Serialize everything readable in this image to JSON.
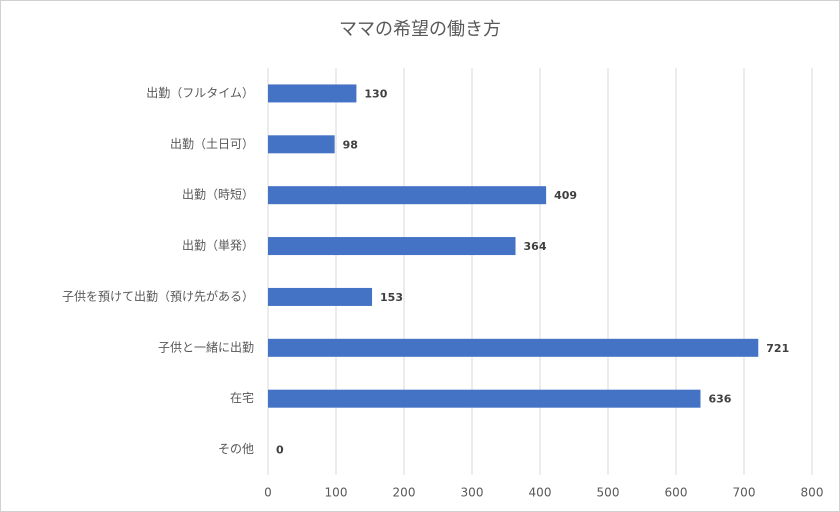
{
  "chart_data": {
    "type": "bar",
    "orientation": "horizontal",
    "title": "ママの希望の働き方",
    "categories": [
      "出勤（フルタイム）",
      "出勤（土日可）",
      "出勤（時短）",
      "出勤（単発）",
      "子供を預けて出勤（預け先がある）",
      "子供と一緒に出勤",
      "在宅",
      "その他"
    ],
    "values": [
      130,
      98,
      409,
      364,
      153,
      721,
      636,
      0
    ],
    "color": "#4472c4",
    "xlim": [
      0,
      800
    ],
    "xticks": [
      0,
      100,
      200,
      300,
      400,
      500,
      600,
      700,
      800
    ],
    "grid": true
  }
}
